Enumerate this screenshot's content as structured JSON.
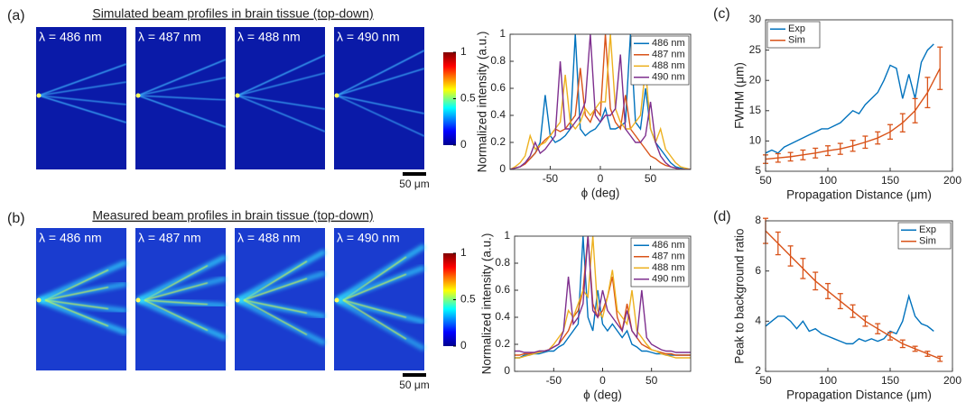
{
  "panel_labels": [
    "(a)",
    "(b)",
    "(c)",
    "(d)"
  ],
  "image_rows": [
    {
      "title": "Simulated beam profiles in brain tissue (top-down)",
      "wavelengths": [
        "λ = 486 nm",
        "λ = 487 nm",
        "λ = 488 nm",
        "λ = 490 nm"
      ],
      "colorbar_lim": [
        0,
        1
      ],
      "colorbar_ticks": [
        0,
        0.5,
        1
      ],
      "scale_bar": "50 μm"
    },
    {
      "title": "Measured beam profiles in brain tissue (top-down)",
      "wavelengths": [
        "λ = 486 nm",
        "λ = 487 nm",
        "λ = 488 nm",
        "λ = 490 nm"
      ],
      "colorbar_lim": [
        0,
        1
      ],
      "colorbar_ticks": [
        0,
        0.5,
        1
      ],
      "scale_bar": "50 μm"
    }
  ],
  "chart_data": [
    {
      "type": "line",
      "xlabel": "ϕ (deg)",
      "ylabel": "Normalized intensity (a.u.)",
      "xlim": [
        -90,
        90
      ],
      "xticks": [
        -50,
        0,
        50
      ],
      "ylim": [
        0,
        1
      ],
      "yticks": [
        0,
        0.2,
        0.4,
        0.6,
        0.8,
        1
      ],
      "legend": "upper right",
      "x": [
        -90,
        -85,
        -80,
        -75,
        -70,
        -65,
        -60,
        -55,
        -50,
        -45,
        -40,
        -35,
        -30,
        -25,
        -20,
        -15,
        -10,
        -5,
        0,
        5,
        10,
        15,
        20,
        25,
        30,
        35,
        40,
        45,
        50,
        55,
        60,
        65,
        70,
        75,
        80,
        85,
        90
      ],
      "series": [
        {
          "name": "486 nm",
          "color": "#0072BD",
          "values": [
            0,
            0.01,
            0.02,
            0.05,
            0.08,
            0.12,
            0.2,
            0.55,
            0.25,
            0.2,
            0.22,
            0.25,
            0.3,
            1.0,
            0.3,
            0.25,
            0.28,
            0.3,
            0.35,
            0.45,
            0.3,
            0.3,
            0.32,
            0.35,
            1.0,
            0.35,
            0.3,
            0.6,
            0.3,
            0.2,
            0.15,
            0.1,
            0.05,
            0.02,
            0.01,
            0,
            0
          ]
        },
        {
          "name": "487 nm",
          "color": "#D95319",
          "values": [
            0,
            0.01,
            0.02,
            0.04,
            0.08,
            0.12,
            0.18,
            0.22,
            0.25,
            0.3,
            0.28,
            0.3,
            0.35,
            0.4,
            0.75,
            0.4,
            0.35,
            0.45,
            0.4,
            1.0,
            0.45,
            0.35,
            0.3,
            0.55,
            0.3,
            0.25,
            0.2,
            0.15,
            0.1,
            0.08,
            0.05,
            0.03,
            0.02,
            0.01,
            0,
            0,
            0
          ]
        },
        {
          "name": "488 nm",
          "color": "#EDB120",
          "values": [
            0,
            0.02,
            0.05,
            0.1,
            0.25,
            0.15,
            0.18,
            0.2,
            0.25,
            0.3,
            0.35,
            0.7,
            0.35,
            0.3,
            0.35,
            0.45,
            0.4,
            0.45,
            0.5,
            0.5,
            1.0,
            0.45,
            0.35,
            0.3,
            0.3,
            0.35,
            0.4,
            0.75,
            0.3,
            0.2,
            0.3,
            0.15,
            0.1,
            0.05,
            0.02,
            0.01,
            0
          ]
        },
        {
          "name": "490 nm",
          "color": "#7E2F8E",
          "values": [
            0,
            0.01,
            0.02,
            0.05,
            0.1,
            0.2,
            0.12,
            0.15,
            0.2,
            0.25,
            0.8,
            0.3,
            0.3,
            0.35,
            0.4,
            0.5,
            1.0,
            0.4,
            0.35,
            0.4,
            0.4,
            0.45,
            0.85,
            0.3,
            0.25,
            0.2,
            0.2,
            0.25,
            0.5,
            0.2,
            0.1,
            0.05,
            0.02,
            0.01,
            0,
            0,
            0
          ]
        }
      ]
    },
    {
      "type": "line",
      "xlabel": "ϕ (deg)",
      "ylabel": "Normalized intensity (a.u.)",
      "xlim": [
        -90,
        90
      ],
      "xticks": [
        -50,
        0,
        50
      ],
      "ylim": [
        0,
        1
      ],
      "yticks": [
        0,
        0.2,
        0.4,
        0.6,
        0.8,
        1
      ],
      "legend": "upper right",
      "x": [
        -90,
        -85,
        -80,
        -75,
        -70,
        -65,
        -60,
        -55,
        -50,
        -45,
        -40,
        -35,
        -30,
        -25,
        -20,
        -15,
        -10,
        -5,
        0,
        5,
        10,
        15,
        20,
        25,
        30,
        35,
        40,
        45,
        50,
        55,
        60,
        65,
        70,
        75,
        80,
        85,
        90
      ],
      "series": [
        {
          "name": "486 nm",
          "color": "#0072BD",
          "values": [
            0.1,
            0.1,
            0.12,
            0.12,
            0.13,
            0.13,
            0.14,
            0.15,
            0.15,
            0.18,
            0.2,
            0.25,
            0.3,
            0.35,
            1.0,
            0.4,
            0.3,
            0.6,
            0.35,
            0.3,
            0.35,
            0.3,
            0.25,
            0.3,
            0.2,
            0.18,
            0.15,
            0.15,
            0.14,
            0.13,
            0.13,
            0.12,
            0.12,
            0.12,
            0.12,
            0.12,
            0.12
          ]
        },
        {
          "name": "487 nm",
          "color": "#D95319",
          "values": [
            0.12,
            0.12,
            0.13,
            0.13,
            0.14,
            0.15,
            0.15,
            0.16,
            0.18,
            0.2,
            0.25,
            0.3,
            0.4,
            0.45,
            0.6,
            1.0,
            0.5,
            0.4,
            0.45,
            0.55,
            0.7,
            0.4,
            0.3,
            0.5,
            0.3,
            0.25,
            0.2,
            0.18,
            0.16,
            0.15,
            0.14,
            0.13,
            0.13,
            0.12,
            0.12,
            0.12,
            0.12
          ]
        },
        {
          "name": "488 nm",
          "color": "#EDB120",
          "values": [
            0.1,
            0.1,
            0.11,
            0.12,
            0.13,
            0.14,
            0.15,
            0.16,
            0.2,
            0.25,
            0.3,
            0.45,
            0.4,
            0.5,
            0.6,
            0.55,
            1.0,
            0.45,
            0.4,
            0.55,
            0.75,
            0.45,
            0.4,
            0.35,
            0.6,
            0.3,
            0.25,
            0.2,
            0.16,
            0.15,
            0.13,
            0.12,
            0.11,
            0.1,
            0.1,
            0.1,
            0.1
          ]
        },
        {
          "name": "490 nm",
          "color": "#7E2F8E",
          "values": [
            0.15,
            0.15,
            0.14,
            0.14,
            0.14,
            0.15,
            0.15,
            0.16,
            0.18,
            0.2,
            0.3,
            0.7,
            0.35,
            0.4,
            0.5,
            1.0,
            0.45,
            0.4,
            0.6,
            0.45,
            0.4,
            0.35,
            0.3,
            0.45,
            0.3,
            0.25,
            0.6,
            0.25,
            0.2,
            0.18,
            0.16,
            0.15,
            0.15,
            0.14,
            0.14,
            0.14,
            0.14
          ]
        }
      ]
    },
    {
      "type": "line",
      "xlabel": "Propagation Distance (μm)",
      "ylabel": "FWHM (μm)",
      "xlim": [
        50,
        200
      ],
      "xticks": [
        50,
        100,
        150,
        200
      ],
      "ylim": [
        5,
        30
      ],
      "yticks": [
        5,
        10,
        15,
        20,
        25,
        30
      ],
      "legend": "upper left",
      "series": [
        {
          "name": "Exp",
          "color": "#0072BD",
          "x": [
            50,
            55,
            60,
            65,
            70,
            75,
            80,
            85,
            90,
            95,
            100,
            105,
            110,
            115,
            120,
            125,
            130,
            135,
            140,
            145,
            150,
            155,
            160,
            165,
            170,
            175,
            180,
            185
          ],
          "values": [
            8,
            8.5,
            8,
            9,
            9.5,
            10,
            10.5,
            11,
            11.5,
            12,
            12,
            12.5,
            13,
            14,
            15,
            14.5,
            16,
            17,
            18,
            20,
            22.5,
            22,
            17,
            21,
            17,
            23,
            25,
            26
          ]
        },
        {
          "name": "Sim",
          "color": "#D95319",
          "x": [
            50,
            60,
            70,
            80,
            90,
            100,
            110,
            120,
            130,
            140,
            150,
            160,
            170,
            180,
            190
          ],
          "values": [
            7,
            7.2,
            7.4,
            7.7,
            8,
            8.4,
            8.7,
            9.2,
            9.8,
            10.5,
            11.5,
            13,
            15,
            18,
            22
          ],
          "errors": [
            0.7,
            0.7,
            0.7,
            0.8,
            0.8,
            0.8,
            0.9,
            0.9,
            1,
            1,
            1.2,
            1.5,
            2,
            2.5,
            3.5
          ]
        }
      ]
    },
    {
      "type": "line",
      "xlabel": "Propagation Distance (μm)",
      "ylabel": "Peak to background ratio",
      "xlim": [
        50,
        200
      ],
      "xticks": [
        50,
        100,
        150,
        200
      ],
      "ylim": [
        2,
        8
      ],
      "yticks": [
        2,
        4,
        6,
        8
      ],
      "legend": "upper right",
      "series": [
        {
          "name": "Exp",
          "color": "#0072BD",
          "x": [
            50,
            55,
            60,
            65,
            70,
            75,
            80,
            85,
            90,
            95,
            100,
            105,
            110,
            115,
            120,
            125,
            130,
            135,
            140,
            145,
            150,
            155,
            160,
            165,
            170,
            175,
            180,
            185
          ],
          "values": [
            3.8,
            4.0,
            4.2,
            4.2,
            4.0,
            3.7,
            4.0,
            3.6,
            3.7,
            3.5,
            3.4,
            3.3,
            3.2,
            3.1,
            3.1,
            3.3,
            3.2,
            3.3,
            3.2,
            3.3,
            3.6,
            3.5,
            4.0,
            5.0,
            4.2,
            3.9,
            3.8,
            3.6
          ]
        },
        {
          "name": "Sim",
          "color": "#D95319",
          "x": [
            50,
            60,
            70,
            80,
            90,
            100,
            110,
            120,
            130,
            140,
            150,
            160,
            170,
            180,
            190
          ],
          "values": [
            7.6,
            7.1,
            6.6,
            6.1,
            5.6,
            5.2,
            4.8,
            4.4,
            4.0,
            3.7,
            3.4,
            3.1,
            2.9,
            2.7,
            2.5
          ],
          "errors": [
            0.5,
            0.45,
            0.4,
            0.4,
            0.35,
            0.3,
            0.3,
            0.25,
            0.2,
            0.2,
            0.15,
            0.15,
            0.1,
            0.1,
            0.1
          ]
        }
      ]
    }
  ]
}
